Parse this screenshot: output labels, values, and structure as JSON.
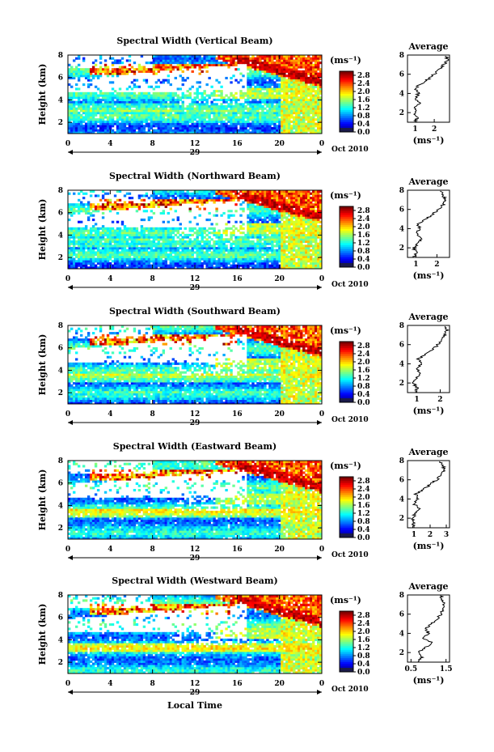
{
  "figure": {
    "date_label": "Oct 2010",
    "day_label": "29",
    "bottom_xlabel": "Local Time",
    "ylabel": "Height (km)",
    "unit_label": "(ms⁻¹)",
    "avg_title": "Average",
    "avg_xlabel": "(ms⁻¹)"
  },
  "chart_data": [
    {
      "type": "heatmap",
      "title": "Spectral Width (Vertical Beam)",
      "xlabel": "",
      "ylabel": "Height (km)",
      "x_ticks": [
        "0",
        "4",
        "8",
        "12",
        "16",
        "20",
        "0"
      ],
      "xlim": [
        0,
        24
      ],
      "y_ticks": [
        "2",
        "4",
        "6",
        "8"
      ],
      "ylim": [
        1,
        8
      ],
      "colorbar": {
        "ticks": [
          "0.0",
          "0.4",
          "0.8",
          "1.2",
          "1.6",
          "2.0",
          "2.4",
          "2.8"
        ],
        "range": [
          0,
          3.0
        ]
      },
      "average_profile": {
        "title": "Average",
        "xlabel": "(ms⁻¹)",
        "x_ticks": [
          "1",
          "2"
        ],
        "xlim": [
          0.6,
          2.8
        ],
        "profile": [
          [
            1.0,
            1
          ],
          [
            1.1,
            1.5
          ],
          [
            0.95,
            2
          ],
          [
            1.0,
            2.5
          ],
          [
            1.2,
            3
          ],
          [
            1.05,
            3.5
          ],
          [
            1.15,
            4
          ],
          [
            1.0,
            4.5
          ],
          [
            1.3,
            5
          ],
          [
            1.7,
            5.5
          ],
          [
            2.0,
            6
          ],
          [
            2.3,
            6.5
          ],
          [
            2.5,
            7
          ],
          [
            2.7,
            7.5
          ],
          [
            2.6,
            8
          ]
        ]
      }
    },
    {
      "type": "heatmap",
      "title": "Spectral Width (Northward Beam)",
      "xlabel": "",
      "ylabel": "Height (km)",
      "x_ticks": [
        "0",
        "4",
        "8",
        "12",
        "16",
        "20",
        "0"
      ],
      "xlim": [
        0,
        24
      ],
      "y_ticks": [
        "2",
        "4",
        "6",
        "8"
      ],
      "ylim": [
        1,
        8
      ],
      "colorbar": {
        "ticks": [
          "0.0",
          "0.4",
          "0.8",
          "1.2",
          "1.6",
          "2.0",
          "2.4",
          "2.8"
        ],
        "range": [
          0,
          3.0
        ]
      },
      "average_profile": {
        "title": "Average",
        "xlabel": "(ms⁻¹)",
        "x_ticks": [
          "1",
          "2"
        ],
        "xlim": [
          0.6,
          2.6
        ],
        "profile": [
          [
            0.9,
            1
          ],
          [
            1.0,
            1.5
          ],
          [
            0.9,
            2
          ],
          [
            1.1,
            2.5
          ],
          [
            1.3,
            3
          ],
          [
            1.0,
            3.5
          ],
          [
            1.2,
            4
          ],
          [
            1.1,
            4.5
          ],
          [
            1.5,
            5
          ],
          [
            1.8,
            5.5
          ],
          [
            2.1,
            6
          ],
          [
            2.3,
            6.5
          ],
          [
            2.4,
            7
          ],
          [
            2.3,
            7.5
          ],
          [
            2.2,
            8
          ]
        ]
      }
    },
    {
      "type": "heatmap",
      "title": "Spectral Width (Southward Beam)",
      "xlabel": "",
      "ylabel": "Height (km)",
      "x_ticks": [
        "0",
        "4",
        "8",
        "12",
        "16",
        "20",
        "0"
      ],
      "xlim": [
        0,
        24
      ],
      "y_ticks": [
        "2",
        "4",
        "6",
        "8"
      ],
      "ylim": [
        1,
        8
      ],
      "colorbar": {
        "ticks": [
          "0.0",
          "0.4",
          "0.8",
          "1.2",
          "1.6",
          "2.0",
          "2.4",
          "2.8"
        ],
        "range": [
          0,
          3.0
        ]
      },
      "average_profile": {
        "title": "Average",
        "xlabel": "(ms⁻¹)",
        "x_ticks": [
          "1",
          "2"
        ],
        "xlim": [
          0.6,
          2.4
        ],
        "profile": [
          [
            0.9,
            1
          ],
          [
            1.0,
            1.5
          ],
          [
            0.85,
            2
          ],
          [
            1.0,
            2.5
          ],
          [
            1.2,
            3
          ],
          [
            0.95,
            3.5
          ],
          [
            1.2,
            4
          ],
          [
            1.05,
            4.5
          ],
          [
            1.4,
            5
          ],
          [
            1.7,
            5.5
          ],
          [
            1.9,
            6
          ],
          [
            2.1,
            6.5
          ],
          [
            2.2,
            7
          ],
          [
            2.3,
            7.5
          ],
          [
            2.2,
            8
          ]
        ]
      }
    },
    {
      "type": "heatmap",
      "title": "Spectral Width (Eastward Beam)",
      "xlabel": "",
      "ylabel": "Height (km)",
      "x_ticks": [
        "0",
        "4",
        "8",
        "12",
        "16",
        "20",
        "0"
      ],
      "xlim": [
        0,
        24
      ],
      "y_ticks": [
        "2",
        "4",
        "6",
        "8"
      ],
      "ylim": [
        1,
        8
      ],
      "colorbar": {
        "ticks": [
          "0.0",
          "0.4",
          "0.8",
          "1.2",
          "1.6",
          "2.0",
          "2.4",
          "2.8"
        ],
        "range": [
          0,
          3.0
        ]
      },
      "average_profile": {
        "title": "Average",
        "xlabel": "(ms⁻¹)",
        "x_ticks": [
          "1",
          "2",
          "3"
        ],
        "xlim": [
          0.6,
          3.2
        ],
        "profile": [
          [
            0.9,
            1
          ],
          [
            1.0,
            1.5
          ],
          [
            0.9,
            2
          ],
          [
            1.1,
            2.5
          ],
          [
            1.3,
            3
          ],
          [
            1.0,
            3.5
          ],
          [
            1.25,
            4
          ],
          [
            1.1,
            4.5
          ],
          [
            1.6,
            5
          ],
          [
            2.0,
            5.5
          ],
          [
            2.4,
            6
          ],
          [
            2.7,
            6.5
          ],
          [
            2.9,
            7
          ],
          [
            2.8,
            7.5
          ],
          [
            2.6,
            8
          ]
        ]
      }
    },
    {
      "type": "heatmap",
      "title": "Spectral Width (Westward Beam)",
      "xlabel": "Local Time",
      "ylabel": "Height (km)",
      "x_ticks": [
        "0",
        "4",
        "8",
        "12",
        "16",
        "20",
        "0"
      ],
      "xlim": [
        0,
        24
      ],
      "y_ticks": [
        "2",
        "4",
        "6",
        "8"
      ],
      "ylim": [
        1,
        8
      ],
      "colorbar": {
        "ticks": [
          "0.0",
          "0.4",
          "0.8",
          "1.2",
          "1.6",
          "2.0",
          "2.4",
          "2.8"
        ],
        "range": [
          0,
          3.0
        ]
      },
      "average_profile": {
        "title": "Average",
        "xlabel": "(ms⁻¹)",
        "x_ticks": [
          "0.5",
          "1.5"
        ],
        "xlim": [
          0.4,
          1.6
        ],
        "profile": [
          [
            0.7,
            1
          ],
          [
            0.8,
            1.5
          ],
          [
            0.7,
            2
          ],
          [
            0.9,
            2.5
          ],
          [
            1.1,
            3
          ],
          [
            0.85,
            3.5
          ],
          [
            1.0,
            4
          ],
          [
            0.9,
            4.5
          ],
          [
            1.1,
            5
          ],
          [
            1.25,
            5.5
          ],
          [
            1.35,
            6
          ],
          [
            1.4,
            6.5
          ],
          [
            1.45,
            7
          ],
          [
            1.4,
            7.5
          ],
          [
            1.35,
            8
          ]
        ]
      }
    }
  ]
}
